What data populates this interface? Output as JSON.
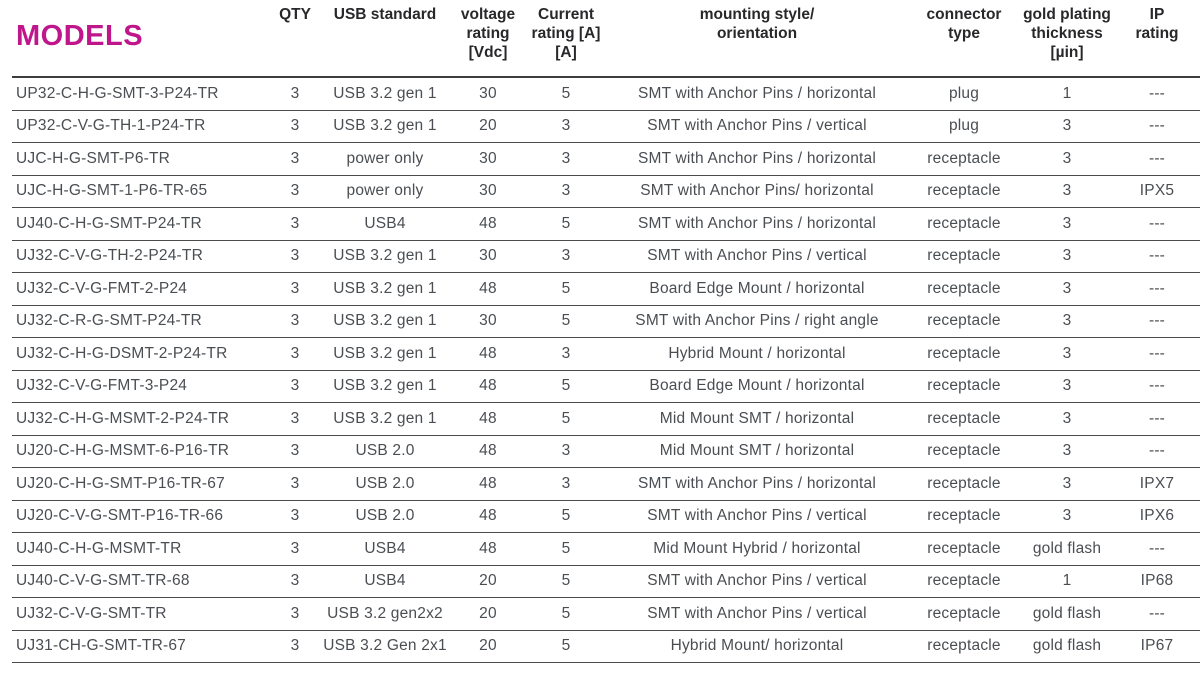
{
  "title": "MODELS",
  "colors": {
    "title_accent": "#c0168c",
    "header_text": "#28272a",
    "body_text": "#4a4e52",
    "rule_line": "#4b4b4d",
    "background": "#ffffff"
  },
  "columns": [
    "model",
    "qty",
    "usb",
    "voltage",
    "current",
    "mounting",
    "connector",
    "gold",
    "ip"
  ],
  "header": {
    "models": "MODELS",
    "qty": "QTY",
    "usb": "USB standard",
    "voltage": "voltage\nrating\n[Vdc]",
    "current": "Current\nrating [A]\n[A]",
    "mounting": "mounting style/\norientation",
    "connector": "connector\ntype",
    "gold": "gold plating\nthickness\n[µin]",
    "ip": "IP\nrating"
  },
  "rows": [
    {
      "model": "UP32-C-H-G-SMT-3-P24-TR",
      "qty": "3",
      "usb": "USB 3.2 gen 1",
      "voltage": "30",
      "current": "5",
      "mounting": "SMT with Anchor Pins / horizontal",
      "connector": "plug",
      "gold": "1",
      "ip": "---"
    },
    {
      "model": "UP32-C-V-G-TH-1-P24-TR",
      "qty": "3",
      "usb": "USB 3.2 gen 1",
      "voltage": "20",
      "current": "3",
      "mounting": "SMT with Anchor Pins / vertical",
      "connector": "plug",
      "gold": "3",
      "ip": "---"
    },
    {
      "model": "UJC-H-G-SMT-P6-TR",
      "qty": "3",
      "usb": "power only",
      "voltage": "30",
      "current": "3",
      "mounting": "SMT with Anchor Pins / horizontal",
      "connector": "receptacle",
      "gold": "3",
      "ip": "---"
    },
    {
      "model": "UJC-H-G-SMT-1-P6-TR-65",
      "qty": "3",
      "usb": "power only",
      "voltage": "30",
      "current": "3",
      "mounting": "SMT with Anchor Pins/ horizontal",
      "connector": "receptacle",
      "gold": "3",
      "ip": "IPX5"
    },
    {
      "model": "UJ40-C-H-G-SMT-P24-TR",
      "qty": "3",
      "usb": "USB4",
      "voltage": "48",
      "current": "5",
      "mounting": "SMT with Anchor Pins / horizontal",
      "connector": "receptacle",
      "gold": "3",
      "ip": "---"
    },
    {
      "model": "UJ32-C-V-G-TH-2-P24-TR",
      "qty": "3",
      "usb": "USB 3.2 gen 1",
      "voltage": "30",
      "current": "3",
      "mounting": "SMT with Anchor Pins / vertical",
      "connector": "receptacle",
      "gold": "3",
      "ip": "---"
    },
    {
      "model": "UJ32-C-V-G-FMT-2-P24",
      "qty": "3",
      "usb": "USB 3.2 gen 1",
      "voltage": "48",
      "current": "5",
      "mounting": "Board Edge Mount / horizontal",
      "connector": "receptacle",
      "gold": "3",
      "ip": "---"
    },
    {
      "model": "UJ32-C-R-G-SMT-P24-TR",
      "qty": "3",
      "usb": "USB 3.2 gen 1",
      "voltage": "30",
      "current": "5",
      "mounting": "SMT with Anchor Pins / right angle",
      "connector": "receptacle",
      "gold": "3",
      "ip": "---"
    },
    {
      "model": "UJ32-C-H-G-DSMT-2-P24-TR",
      "qty": "3",
      "usb": "USB 3.2 gen 1",
      "voltage": "48",
      "current": "3",
      "mounting": "Hybrid Mount / horizontal",
      "connector": "receptacle",
      "gold": "3",
      "ip": "---"
    },
    {
      "model": "UJ32-C-V-G-FMT-3-P24",
      "qty": "3",
      "usb": "USB 3.2 gen 1",
      "voltage": "48",
      "current": "5",
      "mounting": "Board Edge Mount / horizontal",
      "connector": "receptacle",
      "gold": "3",
      "ip": "---"
    },
    {
      "model": "UJ32-C-H-G-MSMT-2-P24-TR",
      "qty": "3",
      "usb": "USB 3.2 gen 1",
      "voltage": "48",
      "current": "5",
      "mounting": "Mid Mount SMT / horizontal",
      "connector": "receptacle",
      "gold": "3",
      "ip": "---"
    },
    {
      "model": "UJ20-C-H-G-MSMT-6-P16-TR",
      "qty": "3",
      "usb": "USB 2.0",
      "voltage": "48",
      "current": "3",
      "mounting": "Mid Mount SMT / horizontal",
      "connector": "receptacle",
      "gold": "3",
      "ip": "---"
    },
    {
      "model": "UJ20-C-H-G-SMT-P16-TR-67",
      "qty": "3",
      "usb": "USB 2.0",
      "voltage": "48",
      "current": "3",
      "mounting": "SMT with Anchor Pins / horizontal",
      "connector": "receptacle",
      "gold": "3",
      "ip": "IPX7"
    },
    {
      "model": "UJ20-C-V-G-SMT-P16-TR-66",
      "qty": "3",
      "usb": "USB 2.0",
      "voltage": "48",
      "current": "5",
      "mounting": "SMT with Anchor Pins / vertical",
      "connector": "receptacle",
      "gold": "3",
      "ip": "IPX6"
    },
    {
      "model": "UJ40-C-H-G-MSMT-TR",
      "qty": "3",
      "usb": "USB4",
      "voltage": "48",
      "current": "5",
      "mounting": "Mid Mount Hybrid / horizontal",
      "connector": "receptacle",
      "gold": "gold flash",
      "ip": "---"
    },
    {
      "model": "UJ40-C-V-G-SMT-TR-68",
      "qty": "3",
      "usb": "USB4",
      "voltage": "20",
      "current": "5",
      "mounting": "SMT with Anchor Pins / vertical",
      "connector": "receptacle",
      "gold": "1",
      "ip": "IP68"
    },
    {
      "model": "UJ32-C-V-G-SMT-TR",
      "qty": "3",
      "usb": "USB 3.2 gen2x2",
      "voltage": "20",
      "current": "5",
      "mounting": "SMT with Anchor Pins / vertical",
      "connector": "receptacle",
      "gold": "gold flash",
      "ip": "---"
    },
    {
      "model": "UJ31-CH-G-SMT-TR-67",
      "qty": "3",
      "usb": "USB 3.2 Gen 2x1",
      "voltage": "20",
      "current": "5",
      "mounting": "Hybrid Mount/ horizontal",
      "connector": "receptacle",
      "gold": "gold flash",
      "ip": "IP67"
    }
  ]
}
